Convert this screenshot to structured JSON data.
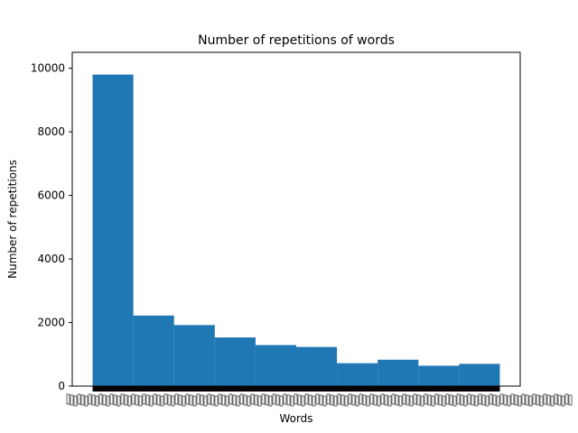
{
  "chart_data": {
    "type": "bar",
    "title": "Number of repetitions of words",
    "xlabel": "Words",
    "ylabel": "Number of repetitions",
    "ylim": [
      0,
      10500
    ],
    "yticks": [
      0,
      2000,
      4000,
      6000,
      8000,
      10000
    ],
    "ytick_labels": [
      "0",
      "2000",
      "4000",
      "6000",
      "8000",
      "10000"
    ],
    "bin_edges": [
      0,
      1,
      2,
      3,
      4,
      5,
      6,
      7,
      8,
      9,
      10
    ],
    "values": [
      9800,
      2220,
      1920,
      1530,
      1290,
      1230,
      720,
      830,
      640,
      700
    ],
    "bar_color": "#1f77b4",
    "grid": false,
    "x_tick_labels_overlapping": true
  }
}
